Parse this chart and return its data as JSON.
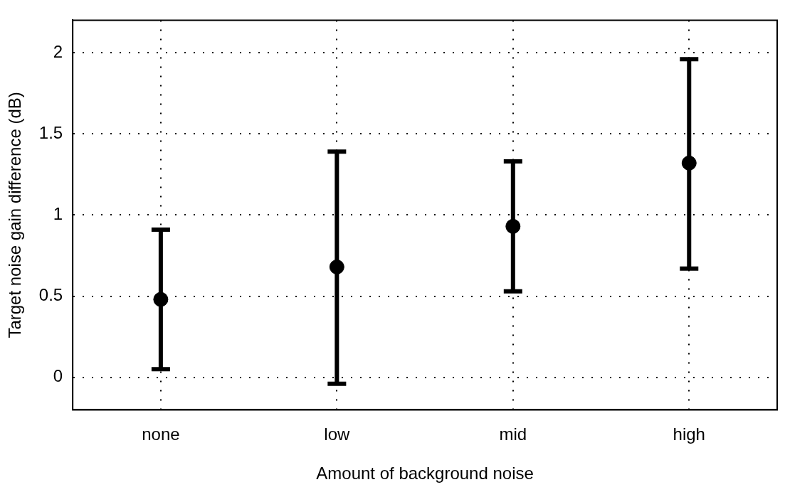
{
  "chart_data": {
    "type": "scatter",
    "xlabel": "Amount of background noise",
    "ylabel": "Target noise gain difference (dB)",
    "categories": [
      "none",
      "low",
      "mid",
      "high"
    ],
    "series": [
      {
        "color": "#000000",
        "values": [
          0.48,
          0.68,
          0.93,
          1.32
        ],
        "errors": [
          [
            0.05,
            0.91
          ],
          [
            -0.04,
            1.39
          ],
          [
            0.53,
            1.33
          ],
          [
            0.67,
            1.96
          ]
        ]
      }
    ],
    "ylim": [
      -0.2,
      2.2
    ],
    "yticks": [
      0,
      0.5,
      1,
      1.5,
      2
    ],
    "grid": true,
    "marker": "circle",
    "legend": false
  }
}
